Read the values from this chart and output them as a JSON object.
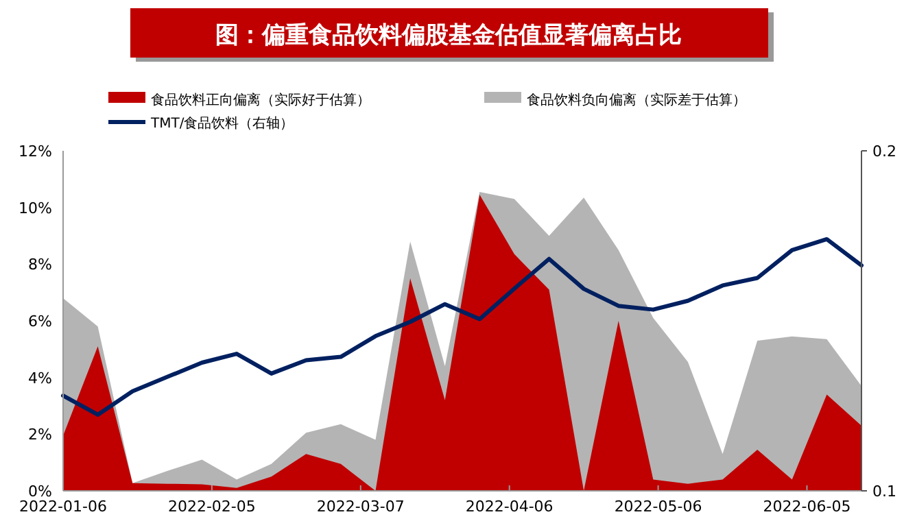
{
  "chart_data": {
    "type": "area",
    "title": "图：偏重食品饮料偏股基金估值显著偏离占比",
    "legend": "top",
    "x": [
      "2022-01-06",
      "2022-01-13",
      "2022-01-20",
      "2022-01-27",
      "2022-02-03",
      "2022-02-10",
      "2022-02-17",
      "2022-02-24",
      "2022-03-03",
      "2022-03-10",
      "2022-03-17",
      "2022-03-24",
      "2022-03-31",
      "2022-04-07",
      "2022-04-14",
      "2022-04-21",
      "2022-04-28",
      "2022-05-05",
      "2022-05-12",
      "2022-05-19",
      "2022-05-26",
      "2022-06-02",
      "2022-06-09",
      "2022-06-16"
    ],
    "xlim": [
      "2022-01-06",
      "2022-06-16"
    ],
    "xticks": [
      "2022-01-06",
      "2022-02-05",
      "2022-03-07",
      "2022-04-06",
      "2022-05-06",
      "2022-06-05"
    ],
    "ylim": [
      0,
      12
    ],
    "yticks": [
      {
        "value": 0,
        "label": "0%"
      },
      {
        "value": 2,
        "label": "2%"
      },
      {
        "value": 4,
        "label": "4%"
      },
      {
        "value": 6,
        "label": "6%"
      },
      {
        "value": 8,
        "label": "8%"
      },
      {
        "value": 10,
        "label": "10%"
      },
      {
        "value": 12,
        "label": "12%"
      }
    ],
    "y2lim": [
      0.1,
      0.2
    ],
    "y2ticks": [
      0.1,
      0.2
    ],
    "series": [
      {
        "name": "食品饮料负向偏离（实际差于估算）",
        "color": "#b4b4b4",
        "values": [
          6.8,
          5.8,
          0.27,
          0.7,
          1.1,
          0.4,
          0.95,
          2.05,
          2.35,
          1.8,
          8.8,
          4.4,
          10.55,
          10.3,
          9.0,
          10.35,
          8.5,
          6.1,
          4.55,
          1.3,
          5.3,
          5.45,
          5.35,
          3.7
        ]
      },
      {
        "name": "食品饮料正向偏离（实际好于估算）",
        "color": "#c00000",
        "values": [
          1.95,
          5.1,
          0.27,
          0.25,
          0.23,
          0.1,
          0.5,
          1.3,
          0.95,
          0,
          7.5,
          3.2,
          10.45,
          8.35,
          7.1,
          0,
          6.0,
          0.4,
          0.25,
          0.4,
          1.45,
          0.4,
          3.4,
          2.3
        ]
      },
      {
        "name": "TMT/食品饮料（右轴）",
        "type": "line",
        "axis": "y2",
        "color": "#002060",
        "values": [
          0.128,
          0.1224,
          0.1293,
          0.1335,
          0.1377,
          0.1403,
          0.1345,
          0.1384,
          0.1394,
          0.1455,
          0.1497,
          0.1549,
          0.1505,
          0.1595,
          0.1682,
          0.1594,
          0.1544,
          0.1533,
          0.1559,
          0.1604,
          0.1626,
          0.1708,
          0.174,
          0.1663
        ]
      }
    ]
  }
}
